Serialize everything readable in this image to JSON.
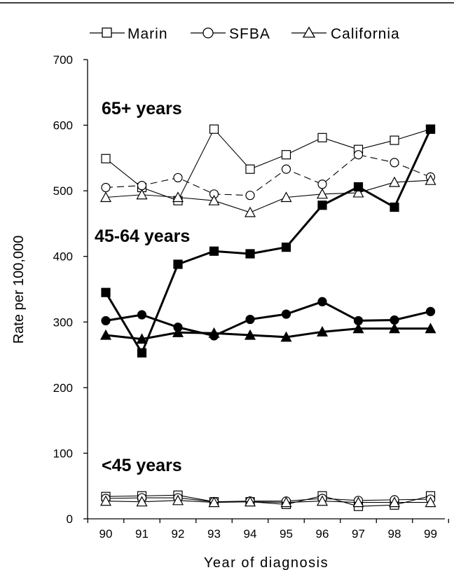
{
  "chart_data": {
    "type": "line",
    "xlabel": "Year of diagnosis",
    "ylabel": "Rate per 100,000",
    "ylim": [
      0,
      700
    ],
    "yticks": [
      0,
      100,
      200,
      300,
      400,
      500,
      600,
      700
    ],
    "categories": [
      "90",
      "91",
      "92",
      "93",
      "94",
      "95",
      "96",
      "97",
      "98",
      "99"
    ],
    "legend": {
      "position": "top",
      "entries": [
        {
          "label": "Marin",
          "marker": "square"
        },
        {
          "label": "SFBA",
          "marker": "circle"
        },
        {
          "label": "California",
          "marker": "triangle"
        }
      ]
    },
    "groups": [
      {
        "label": "65+ years",
        "style": "open",
        "series": [
          {
            "name": "Marin",
            "marker": "square",
            "dash": false,
            "values": [
              549,
              505,
              485,
              594,
              533,
              555,
              581,
              563,
              577,
              594
            ]
          },
          {
            "name": "SFBA",
            "marker": "circle",
            "dash": true,
            "values": [
              505,
              508,
              520,
              495,
              493,
              533,
              510,
              555,
              543,
              521
            ]
          },
          {
            "name": "California",
            "marker": "triangle",
            "dash": false,
            "values": [
              490,
              494,
              490,
              485,
              467,
              490,
              495,
              497,
              513,
              516
            ]
          }
        ]
      },
      {
        "label": "45-64 years",
        "style": "filled",
        "series": [
          {
            "name": "Marin",
            "marker": "square",
            "dash": false,
            "values": [
              345,
              253,
              388,
              408,
              404,
              414,
              478,
              506,
              475,
              594
            ]
          },
          {
            "name": "SFBA",
            "marker": "circle",
            "dash": false,
            "values": [
              302,
              311,
              292,
              279,
              304,
              312,
              331,
              302,
              303,
              316
            ]
          },
          {
            "name": "California",
            "marker": "triangle",
            "dash": false,
            "values": [
              280,
              274,
              284,
              283,
              280,
              277,
              285,
              290,
              290,
              290
            ]
          }
        ]
      },
      {
        "label": "<45 years",
        "style": "open",
        "series": [
          {
            "name": "Marin",
            "marker": "square",
            "dash": false,
            "values": [
              34,
              35,
              36,
              26,
              26,
              22,
              35,
              19,
              21,
              35
            ]
          },
          {
            "name": "SFBA",
            "marker": "circle",
            "dash": false,
            "values": [
              31,
              32,
              32,
              26,
              27,
              27,
              31,
              28,
              29,
              30
            ]
          },
          {
            "name": "California",
            "marker": "triangle",
            "dash": false,
            "values": [
              27,
              26,
              28,
              25,
              26,
              25,
              27,
              25,
              25,
              25
            ]
          }
        ]
      }
    ]
  }
}
